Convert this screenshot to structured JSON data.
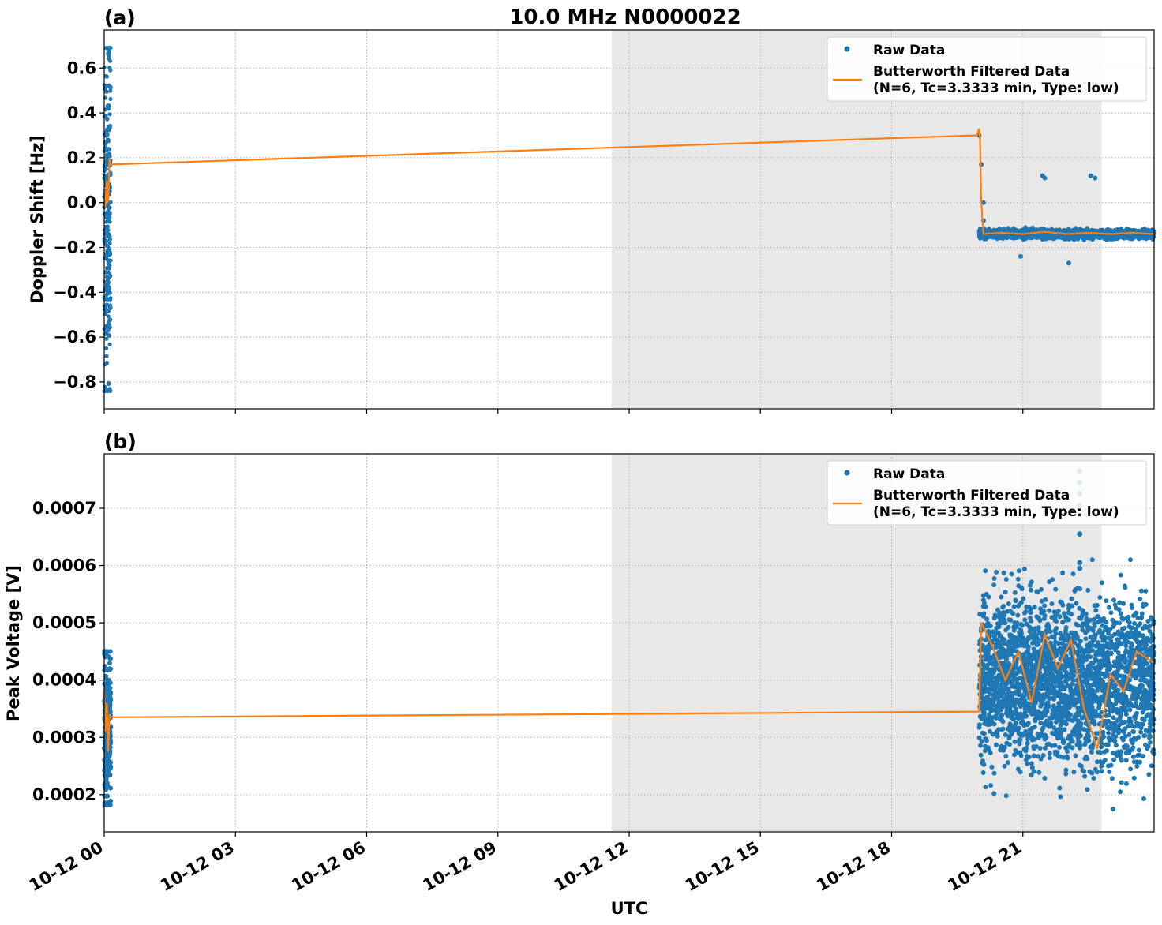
{
  "figure": {
    "title": "10.0 MHz N0000022",
    "xlabel": "UTC",
    "x_ticks": [
      "10-12 00",
      "10-12 03",
      "10-12 06",
      "10-12 09",
      "10-12 12",
      "10-12 15",
      "10-12 18",
      "10-12 21"
    ],
    "colors": {
      "raw": "#1f77b4",
      "filtered": "#ff7f0e",
      "shade": "#e8e8e8"
    }
  },
  "legend": {
    "raw": "Raw Data",
    "filtered_line1": "Butterworth Filtered Data",
    "filtered_line2": "(N=6, Tc=3.3333 min, Type: low)"
  },
  "chart_data": [
    {
      "type": "scatter",
      "panel_label": "(a)",
      "ylabel": "Doppler Shift [Hz]",
      "x_unit": "hours UTC since 10-12 00",
      "xlim": [
        0,
        24
      ],
      "ylim": [
        -0.92,
        0.77
      ],
      "y_ticks": [
        0.6,
        0.4,
        0.2,
        0.0,
        -0.2,
        -0.4,
        -0.6,
        -0.8
      ],
      "y_tick_labels": [
        "0.6",
        "0.4",
        "0.2",
        "0.0",
        "−0.2",
        "−0.4",
        "−0.6",
        "−0.8"
      ],
      "grid": true,
      "legend_position": "top-right",
      "shaded_x_range": [
        11.6,
        22.8
      ],
      "series": [
        {
          "name": "Raw Data",
          "segments": [
            {
              "x_range": [
                0.0,
                0.15
              ],
              "y_range": [
                -0.84,
                0.69
              ]
            },
            {
              "x_range": [
                20.0,
                24.0
              ],
              "y_range": [
                -0.17,
                -0.11
              ],
              "center": -0.14
            }
          ],
          "outliers": [
            {
              "x": 20.0,
              "y": 0.3
            },
            {
              "x": 20.05,
              "y": 0.17
            },
            {
              "x": 20.1,
              "y": 0.0
            },
            {
              "x": 20.1,
              "y": -0.08
            },
            {
              "x": 21.45,
              "y": 0.12
            },
            {
              "x": 21.5,
              "y": 0.11
            },
            {
              "x": 22.55,
              "y": 0.12
            },
            {
              "x": 22.65,
              "y": 0.11
            },
            {
              "x": 22.05,
              "y": -0.27
            },
            {
              "x": 20.95,
              "y": -0.24
            }
          ]
        },
        {
          "name": "Butterworth Filtered Data",
          "x": [
            0.0,
            0.03,
            0.06,
            0.09,
            0.12,
            0.15,
            19.95,
            20.0,
            20.02,
            20.05,
            20.1,
            20.5,
            21.0,
            21.5,
            22.0,
            22.5,
            23.0,
            23.5,
            24.0
          ],
          "y": [
            0.05,
            -0.02,
            0.1,
            0.0,
            0.2,
            0.17,
            0.3,
            0.33,
            0.29,
            0.0,
            -0.14,
            -0.135,
            -0.14,
            -0.13,
            -0.14,
            -0.135,
            -0.14,
            -0.135,
            -0.14
          ]
        }
      ]
    },
    {
      "type": "scatter",
      "panel_label": "(b)",
      "ylabel": "Peak Voltage [V]",
      "x_unit": "hours UTC since 10-12 00",
      "xlim": [
        0,
        24
      ],
      "ylim": [
        0.000135,
        0.000795
      ],
      "y_ticks": [
        0.0007,
        0.0006,
        0.0005,
        0.0004,
        0.0003,
        0.0002
      ],
      "y_tick_labels": [
        "0.0007",
        "0.0006",
        "0.0005",
        "0.0004",
        "0.0003",
        "0.0002"
      ],
      "grid": true,
      "legend_position": "top-right",
      "shaded_x_range": [
        11.6,
        22.8
      ],
      "series": [
        {
          "name": "Raw Data",
          "segments": [
            {
              "x_range": [
                0.0,
                0.15
              ],
              "y_range": [
                0.000182,
                0.00045
              ]
            },
            {
              "x_range": [
                20.0,
                24.0
              ],
              "y_range": [
                0.000165,
                0.00061
              ],
              "center": 0.0004
            }
          ],
          "outliers": [
            {
              "x": 22.3,
              "y": 0.000765
            },
            {
              "x": 22.3,
              "y": 0.000745
            },
            {
              "x": 22.3,
              "y": 0.000725
            },
            {
              "x": 22.3,
              "y": 0.000705
            },
            {
              "x": 22.3,
              "y": 0.000655
            },
            {
              "x": 22.3,
              "y": 0.000605
            },
            {
              "x": 22.3,
              "y": 0.000595
            }
          ]
        },
        {
          "name": "Butterworth Filtered Data",
          "x": [
            0.0,
            0.03,
            0.06,
            0.09,
            0.12,
            0.15,
            20.0,
            20.05,
            20.3,
            20.6,
            20.9,
            21.2,
            21.5,
            21.8,
            22.1,
            22.4,
            22.7,
            23.0,
            23.3,
            23.6,
            24.0
          ],
          "y": [
            0.00038,
            0.00031,
            0.00036,
            0.000275,
            0.00034,
            0.000335,
            0.000345,
            0.0005,
            0.00046,
            0.0004,
            0.00045,
            0.00036,
            0.00048,
            0.00042,
            0.00047,
            0.00035,
            0.00028,
            0.00041,
            0.00038,
            0.00045,
            0.00043
          ]
        }
      ]
    }
  ]
}
